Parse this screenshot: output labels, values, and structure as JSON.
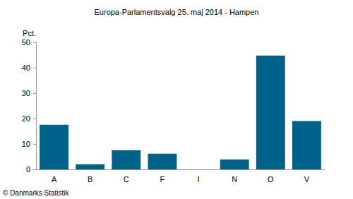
{
  "chart_data": {
    "type": "bar",
    "title": "Europa-Parlamentsvalg 25. maj 2014 - Hampen",
    "y_label": "Pct.",
    "annotations": [
      "© Danmarks Statistik"
    ],
    "categories": [
      "A",
      "B",
      "C",
      "F",
      "I",
      "N",
      "O",
      "V"
    ],
    "values": [
      17.6,
      2.0,
      7.5,
      6.2,
      0,
      3.9,
      44.8,
      19.0
    ],
    "color": "#00628b",
    "ylim": [
      0,
      50
    ],
    "yticks": [
      0,
      10,
      20,
      30,
      40,
      50
    ],
    "grid": false
  }
}
